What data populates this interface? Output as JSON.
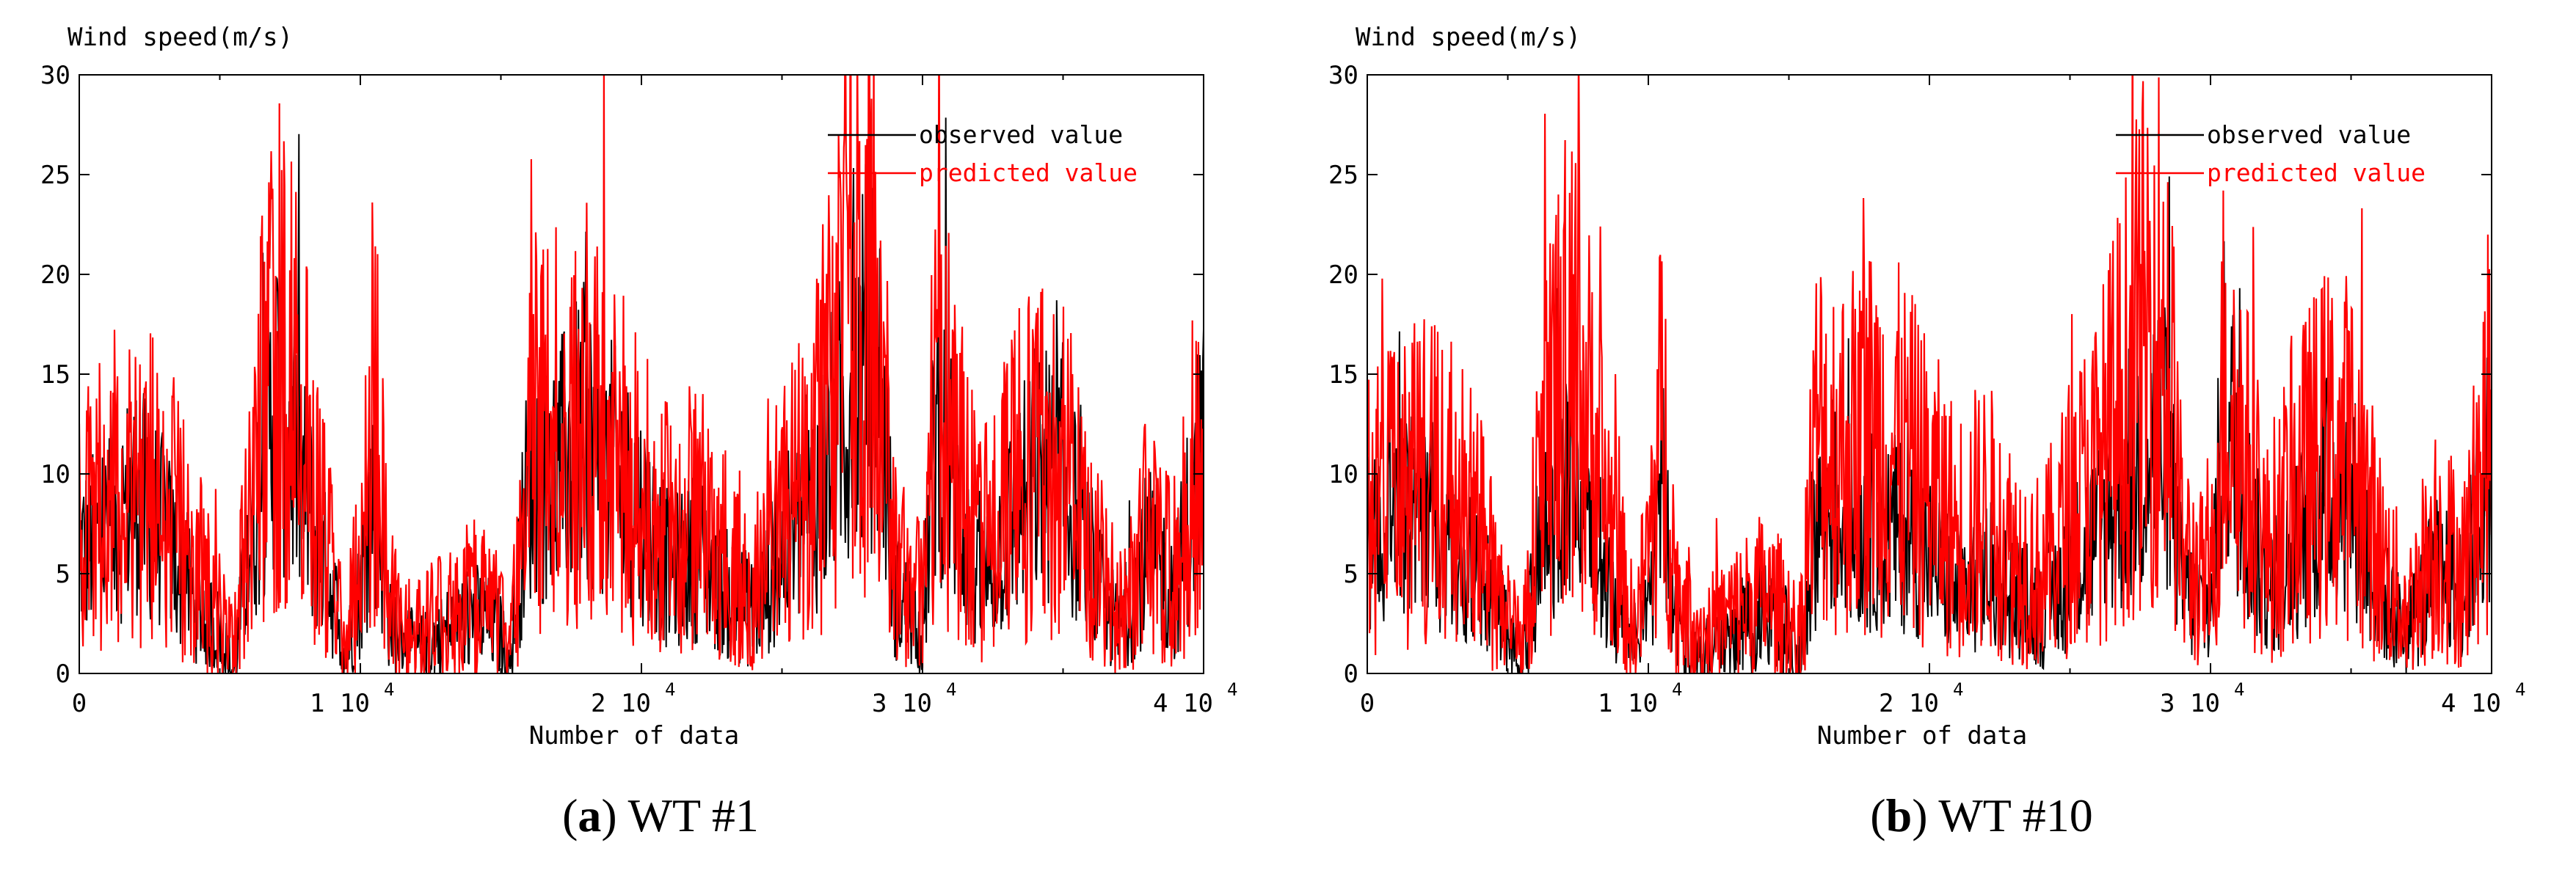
{
  "charts": [
    {
      "panel": {
        "letter": "a",
        "label": "WT #1"
      },
      "chart_data": {
        "type": "line",
        "ylabel": "Wind speed(m/s)",
        "xlabel": "Number of data",
        "xlim": [
          0,
          40000
        ],
        "ylim": [
          0,
          30
        ],
        "xticks": [
          0,
          10000,
          20000,
          30000,
          40000
        ],
        "xtick_labels": [
          "0",
          "1 10",
          "2 10",
          "3 10",
          "4 10"
        ],
        "xtick_exponent": "4",
        "yticks": [
          0,
          5,
          10,
          15,
          20,
          25,
          30
        ],
        "ytick_labels": [
          "0",
          "5",
          "10",
          "15",
          "20",
          "25",
          "30"
        ],
        "legend": {
          "position": "top-right"
        },
        "series": [
          {
            "name": "observed value",
            "color": "#000000",
            "x": [
              0,
              1000,
              2000,
              3000,
              4000,
              5000,
              5500,
              6000,
              7000,
              8000,
              9000,
              9500,
              10000,
              10500,
              11000,
              12000,
              13000,
              14000,
              15000,
              15300,
              16000,
              17000,
              18000,
              19000,
              20000,
              21000,
              22000,
              23000,
              24000,
              25000,
              26000,
              27000,
              28000,
              28500,
              29000,
              30000,
              30500,
              31000,
              32000,
              33000,
              34000,
              35000,
              36000,
              37000,
              38000,
              39000,
              40000
            ],
            "y": [
              6,
              7,
              9,
              7,
              4,
              2,
              0,
              6,
              14,
              9,
              4,
              1,
              4,
              10,
              3,
              1,
              2,
              3,
              2,
              0,
              10,
              10,
              12,
              10,
              8,
              5,
              6,
              4,
              3,
              6,
              8,
              12,
              16,
              15,
              4,
              2,
              13,
              10,
              4,
              7,
              10,
              10,
              5,
              2,
              6,
              4,
              12
            ]
          },
          {
            "name": "predicted value",
            "color": "#ff0000",
            "x": [
              0,
              1000,
              2000,
              3000,
              4000,
              5000,
              5500,
              6000,
              7000,
              8000,
              9000,
              9500,
              10000,
              10500,
              11000,
              12000,
              13000,
              14000,
              15000,
              15300,
              16000,
              17000,
              18000,
              19000,
              20000,
              21000,
              22000,
              23000,
              24000,
              25000,
              26000,
              27000,
              28000,
              28500,
              29000,
              30000,
              30500,
              31000,
              32000,
              33000,
              34000,
              35000,
              36000,
              37000,
              38000,
              39000,
              40000
            ],
            "y": [
              7,
              9,
              10,
              9,
              6,
              3,
              1,
              8,
              17,
              12,
              5,
              2,
              6,
              14,
              4,
              2,
              3,
              4,
              3,
              1,
              12,
              12,
              13,
              11,
              9,
              7,
              8,
              6,
              5,
              8,
              10,
              15,
              19,
              17,
              6,
              4,
              15,
              12,
              6,
              9,
              11,
              11,
              6,
              3,
              7,
              5,
              13
            ]
          }
        ]
      }
    },
    {
      "panel": {
        "letter": "b",
        "label": "WT #10"
      },
      "chart_data": {
        "type": "line",
        "ylabel": "Wind speed(m/s)",
        "xlabel": "Number of data",
        "xlim": [
          0,
          40000
        ],
        "ylim": [
          0,
          30
        ],
        "xticks": [
          0,
          10000,
          20000,
          30000,
          40000
        ],
        "xtick_labels": [
          "0",
          "1 10",
          "2 10",
          "3 10",
          "4 10"
        ],
        "xtick_exponent": "4",
        "yticks": [
          0,
          5,
          10,
          15,
          20,
          25,
          30
        ],
        "ytick_labels": [
          "0",
          "5",
          "10",
          "15",
          "20",
          "25",
          "30"
        ],
        "legend": {
          "position": "top-right"
        },
        "series": [
          {
            "name": "observed value",
            "color": "#000000",
            "x": [
              0,
              1000,
              2000,
              3000,
              4000,
              5000,
              5500,
              6000,
              7000,
              8000,
              9000,
              9500,
              10000,
              10500,
              11000,
              12000,
              13000,
              14000,
              15000,
              15300,
              16000,
              17000,
              18000,
              19000,
              20000,
              21000,
              22000,
              23000,
              24000,
              25000,
              26000,
              27000,
              28000,
              28500,
              29000,
              30000,
              30500,
              31000,
              32000,
              33000,
              34000,
              35000,
              36000,
              37000,
              38000,
              39000,
              40000
            ],
            "y": [
              6,
              7,
              8,
              6,
              5,
              2,
              0,
              5,
              10,
              7,
              3,
              1,
              3,
              9,
              2,
              1,
              2,
              3,
              2,
              0,
              8,
              8,
              7,
              7,
              6,
              4,
              5,
              4,
              3,
              5,
              7,
              9,
              12,
              11,
              4,
              3,
              14,
              10,
              4,
              6,
              9,
              9,
              4,
              2,
              5,
              4,
              11
            ]
          },
          {
            "name": "predicted value",
            "color": "#ff0000",
            "x": [
              0,
              1000,
              2000,
              3000,
              4000,
              5000,
              5500,
              6000,
              7000,
              8000,
              9000,
              9500,
              10000,
              10500,
              11000,
              12000,
              13000,
              14000,
              15000,
              15300,
              16000,
              17000,
              18000,
              19000,
              20000,
              21000,
              22000,
              23000,
              24000,
              25000,
              26000,
              27000,
              28000,
              28500,
              29000,
              30000,
              30500,
              31000,
              32000,
              33000,
              34000,
              35000,
              36000,
              37000,
              38000,
              39000,
              40000
            ],
            "y": [
              8,
              9,
              10,
              9,
              7,
              3,
              1,
              8,
              16,
              12,
              5,
              2,
              6,
              13,
              4,
              2,
              3,
              4,
              3,
              1,
              12,
              11,
              12,
              11,
              9,
              7,
              8,
              6,
              5,
              8,
              10,
              14,
              18,
              16,
              6,
              4,
              15,
              12,
              6,
              9,
              11,
              11,
              6,
              3,
              7,
              5,
              13
            ]
          }
        ]
      }
    }
  ]
}
